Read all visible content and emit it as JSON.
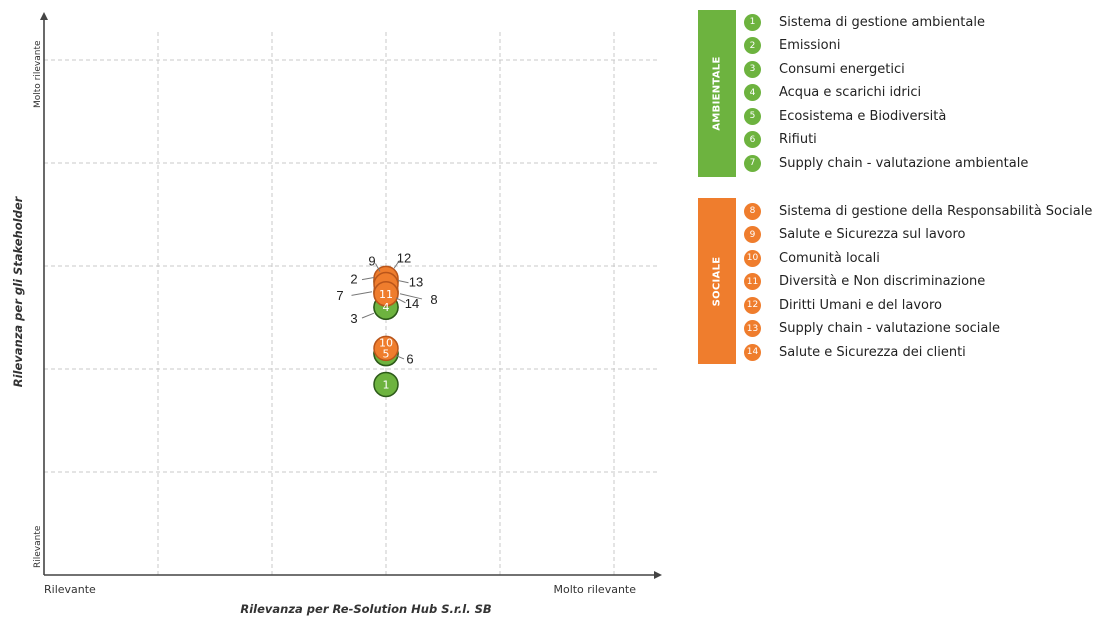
{
  "chart_data": {
    "type": "scatter",
    "xlabel": "Rilevanza per Re-Solution Hub S.r.l. SB",
    "ylabel": "Rilevanza per gli Stakeholder",
    "x_tick_labels": {
      "low": "Rilevante",
      "high": "Molto rilevante"
    },
    "y_tick_labels": {
      "low": "Rilevante",
      "high": "Molto rilevante"
    },
    "xlim": [
      0,
      5
    ],
    "ylim": [
      0,
      5
    ],
    "grid": true,
    "points": [
      {
        "id": "1",
        "x": 3.0,
        "y": 1.85,
        "group": "ambientale"
      },
      {
        "id": "2",
        "x": 3.0,
        "y": 2.85,
        "group": "ambientale"
      },
      {
        "id": "3",
        "x": 3.0,
        "y": 2.6,
        "group": "ambientale"
      },
      {
        "id": "4",
        "x": 3.0,
        "y": 2.6,
        "group": "ambientale"
      },
      {
        "id": "5",
        "x": 3.0,
        "y": 2.15,
        "group": "ambientale"
      },
      {
        "id": "6",
        "x": 3.0,
        "y": 2.15,
        "group": "ambientale"
      },
      {
        "id": "7",
        "x": 3.0,
        "y": 2.75,
        "group": "ambientale"
      },
      {
        "id": "8",
        "x": 3.0,
        "y": 2.75,
        "group": "sociale"
      },
      {
        "id": "9",
        "x": 3.0,
        "y": 2.85,
        "group": "sociale"
      },
      {
        "id": "10",
        "x": 3.0,
        "y": 2.2,
        "group": "sociale"
      },
      {
        "id": "11",
        "x": 3.0,
        "y": 2.73,
        "group": "sociale"
      },
      {
        "id": "12",
        "x": 3.0,
        "y": 2.88,
        "group": "sociale"
      },
      {
        "id": "13",
        "x": 3.0,
        "y": 2.82,
        "group": "sociale"
      },
      {
        "id": "14",
        "x": 3.0,
        "y": 2.73,
        "group": "sociale"
      }
    ]
  },
  "colors": {
    "ambientale": "#6db33f",
    "sociale": "#ef7d2d",
    "grid": "#c8c8c8",
    "axis": "#444444"
  },
  "legend": {
    "ambientale": {
      "title": "AMBIENTALE",
      "items": [
        {
          "num": "1",
          "label": "Sistema di gestione ambientale"
        },
        {
          "num": "2",
          "label": "Emissioni"
        },
        {
          "num": "3",
          "label": "Consumi energetici"
        },
        {
          "num": "4",
          "label": "Acqua e scarichi idrici"
        },
        {
          "num": "5",
          "label": "Ecosistema e Biodiversità"
        },
        {
          "num": "6",
          "label": "Rifiuti"
        },
        {
          "num": "7",
          "label": "Supply chain - valutazione ambientale"
        }
      ]
    },
    "sociale": {
      "title": "SOCIALE",
      "items": [
        {
          "num": "8",
          "label": "Sistema di gestione della Responsabilità Sociale"
        },
        {
          "num": "9",
          "label": "Salute e Sicurezza sul lavoro"
        },
        {
          "num": "10",
          "label": "Comunità locali"
        },
        {
          "num": "11",
          "label": "Diversità e Non discriminazione"
        },
        {
          "num": "12",
          "label": "Diritti Umani e del lavoro"
        },
        {
          "num": "13",
          "label": "Supply chain - valutazione sociale"
        },
        {
          "num": "14",
          "label": "Salute e Sicurezza dei clienti"
        }
      ]
    }
  }
}
